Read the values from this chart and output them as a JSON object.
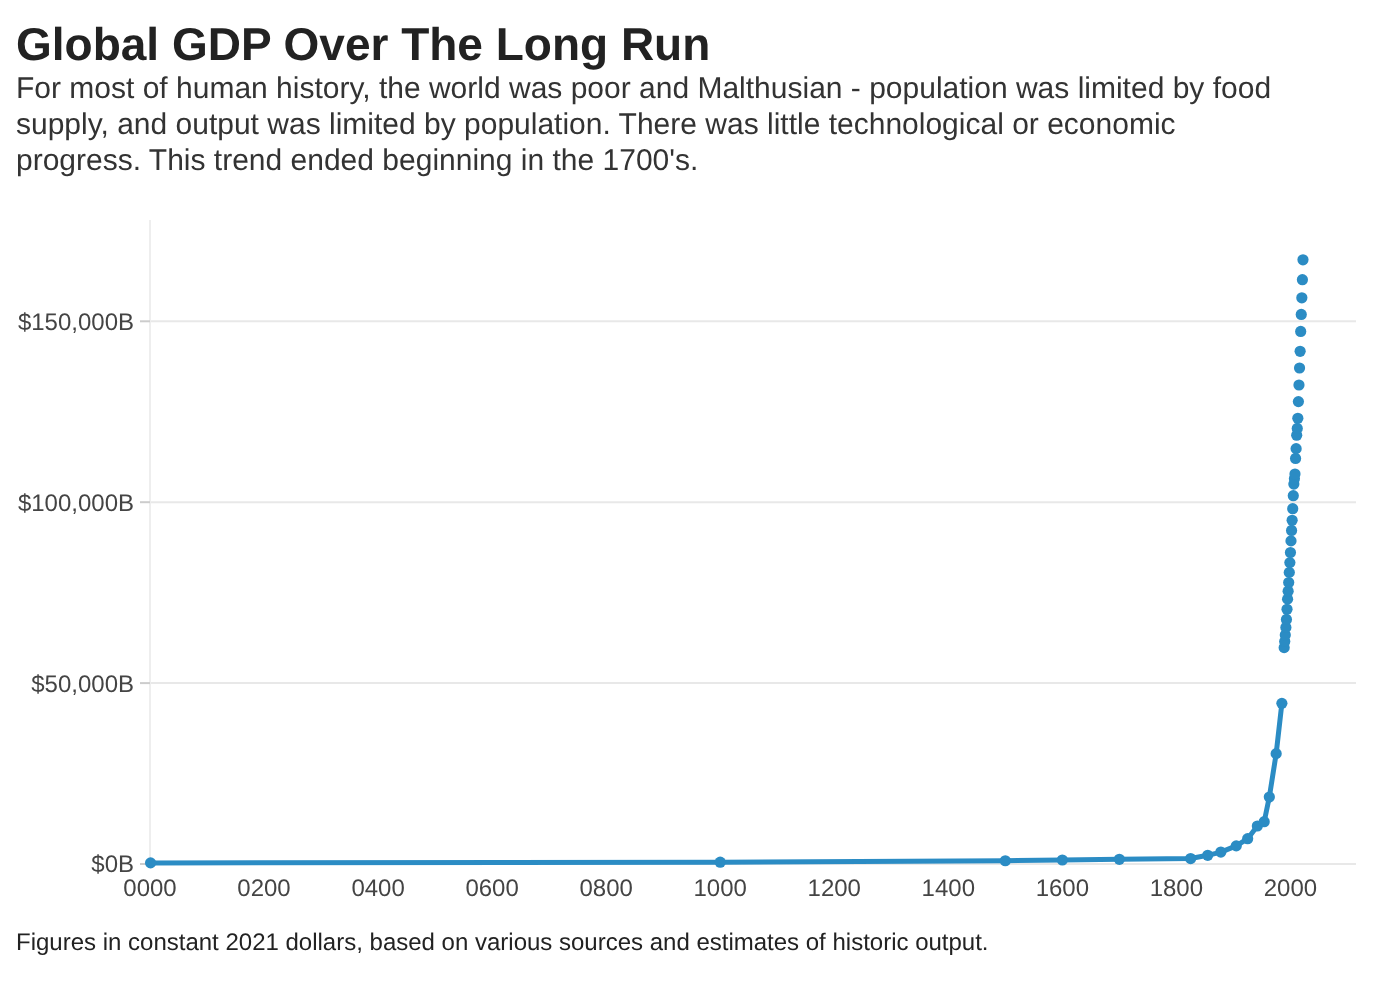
{
  "chart_data": {
    "type": "line",
    "title": "Global GDP Over The Long Run",
    "subtitle": "For most of human history, the world was poor and Malthusian - population was limited by food supply, and output was limited by population. There was little technological or economic progress. This trend ended beginning in the 1700's.",
    "annotations": [
      "Figures in constant 2021 dollars, based on various sources and estimates of historic output."
    ],
    "xlim": [
      0,
      2115
    ],
    "ylim": [
      0,
      178000
    ],
    "xticks": [
      {
        "value": 0,
        "label": "0000"
      },
      {
        "value": 200,
        "label": "0200"
      },
      {
        "value": 400,
        "label": "0400"
      },
      {
        "value": 600,
        "label": "0600"
      },
      {
        "value": 800,
        "label": "0800"
      },
      1000,
      1200,
      1400,
      1600,
      1800,
      2000
    ],
    "yticks": [
      {
        "value": 0,
        "label": "$0B"
      },
      {
        "value": 50000,
        "label": "$50,000B"
      },
      {
        "value": 100000,
        "label": "$100,000B"
      },
      {
        "value": 150000,
        "label": "$150,000B"
      }
    ],
    "grid": "y",
    "marker": "circle",
    "line_style": "solid",
    "series": [
      {
        "color": "#2b8cc4",
        "x": [
          1,
          1000,
          1500,
          1600,
          1700,
          1825,
          1855,
          1878,
          1905,
          1925,
          1942,
          1954,
          1963,
          1975,
          1985
        ],
        "values": [
          300,
          500,
          900,
          1100,
          1300,
          1500,
          2400,
          3300,
          5000,
          7000,
          10500,
          11700,
          18500,
          30500,
          44400
        ]
      },
      {
        "type": "scatter",
        "color": "#2b8cc4",
        "x": [
          1989,
          1990,
          1991,
          1992,
          1993,
          1994,
          1995,
          1996,
          1997,
          1998,
          1999,
          2000,
          2001,
          2002,
          2003,
          2004,
          2005,
          2006,
          2007,
          2008,
          2009,
          2010,
          2011,
          2012,
          2013,
          2014,
          2015,
          2016,
          2017,
          2018,
          2019,
          2020,
          2021,
          2022
        ],
        "values": [
          59800,
          61500,
          63300,
          65400,
          67600,
          70400,
          73200,
          75400,
          77800,
          80600,
          83300,
          86100,
          89300,
          92200,
          95000,
          98200,
          101800,
          105000,
          106500,
          107800,
          112100,
          114800,
          118500,
          120400,
          123200,
          127800,
          132400,
          137100,
          141700,
          147200,
          151900,
          156500,
          161500,
          167000
        ]
      }
    ]
  }
}
